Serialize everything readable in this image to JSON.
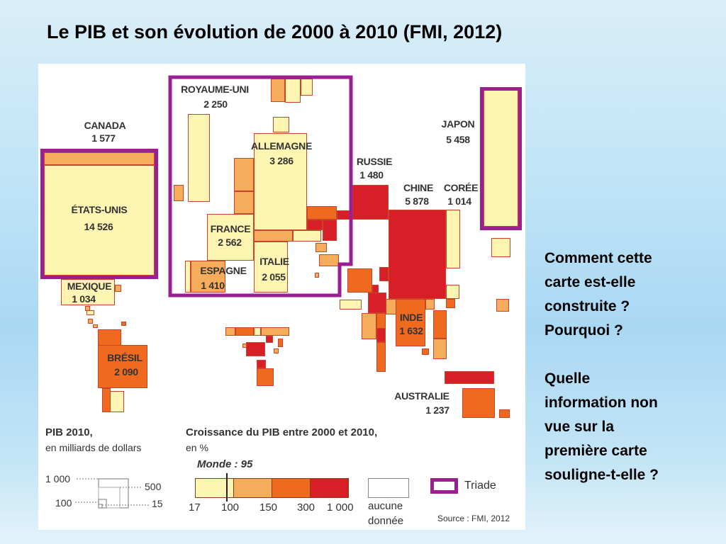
{
  "slide": {
    "title": "Le PIB et son évolution de 2000 à 2010 (FMI, 2012)",
    "questions": [
      "Comment cette",
      "carte est-elle",
      "construite ?",
      "Pourquoi ?",
      "Quelle",
      "information non",
      "vue sur la",
      "première carte",
      "souligne-t-elle ?"
    ]
  },
  "map": {
    "countries": [
      {
        "name": "CANADA",
        "gdp": "1 577"
      },
      {
        "name": "ÉTATS-UNIS",
        "gdp": "14 526"
      },
      {
        "name": "MEXIQUE",
        "gdp": "1 034"
      },
      {
        "name": "ROYAUME-UNI",
        "gdp": "2 250"
      },
      {
        "name": "ALLEMAGNE",
        "gdp": "3 286"
      },
      {
        "name": "FRANCE",
        "gdp": "2 562"
      },
      {
        "name": "ESPAGNE",
        "gdp": "1 410"
      },
      {
        "name": "ITALIE",
        "gdp": "2 055"
      },
      {
        "name": "RUSSIE",
        "gdp": "1 480"
      },
      {
        "name": "CHINE",
        "gdp": "5 878"
      },
      {
        "name": "CORÉE",
        "gdp": "1 014"
      },
      {
        "name": "JAPON",
        "gdp": "5 458"
      },
      {
        "name": "INDE",
        "gdp": "1 632"
      },
      {
        "name": "BRÉSIL",
        "gdp": "2 090"
      },
      {
        "name": "AUSTRALIE",
        "gdp": "1 237"
      }
    ]
  },
  "legend": {
    "size_title": "PIB 2010,",
    "size_subtitle": "en milliards de dollars",
    "size_labels": [
      "1 000",
      "500",
      "100",
      "15"
    ],
    "growth_title": "Croissance du PIB entre 2000 et 2010,",
    "growth_subtitle": "en %",
    "world": "Monde : 95",
    "world_value": 95,
    "class_breaks": [
      "17",
      "100",
      "150",
      "300",
      "1 000"
    ],
    "class_colors": [
      "#fef5b2",
      "#f6ad5b",
      "#ef6a1e",
      "#d81f27"
    ],
    "no_data": [
      "aucune",
      "donnée"
    ],
    "triade": "Triade",
    "triade_color": "#9b1f93",
    "source": "Source : FMI, 2012"
  }
}
